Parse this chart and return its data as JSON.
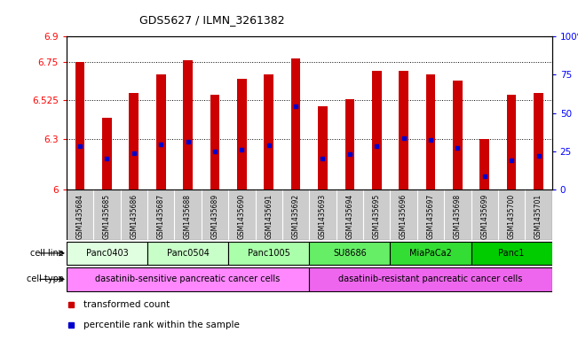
{
  "title": "GDS5627 / ILMN_3261382",
  "samples": [
    "GSM1435684",
    "GSM1435685",
    "GSM1435686",
    "GSM1435687",
    "GSM1435688",
    "GSM1435689",
    "GSM1435690",
    "GSM1435691",
    "GSM1435692",
    "GSM1435693",
    "GSM1435694",
    "GSM1435695",
    "GSM1435696",
    "GSM1435697",
    "GSM1435698",
    "GSM1435699",
    "GSM1435700",
    "GSM1435701"
  ],
  "bar_tops": [
    6.75,
    6.42,
    6.57,
    6.68,
    6.76,
    6.56,
    6.65,
    6.68,
    6.77,
    6.49,
    6.53,
    6.7,
    6.7,
    6.68,
    6.64,
    6.3,
    6.56,
    6.57
  ],
  "blue_positions": [
    6.255,
    6.185,
    6.215,
    6.265,
    6.28,
    6.225,
    6.235,
    6.26,
    6.49,
    6.185,
    6.21,
    6.255,
    6.305,
    6.295,
    6.245,
    6.08,
    6.175,
    6.2
  ],
  "y_min": 6.0,
  "y_max": 6.9,
  "y_ticks": [
    6.0,
    6.3,
    6.525,
    6.75,
    6.9
  ],
  "y_tick_labels": [
    "6",
    "6.3",
    "6.525",
    "6.75",
    "6.9"
  ],
  "right_y_ticks": [
    0,
    25,
    50,
    75,
    100
  ],
  "right_y_tick_labels": [
    "0",
    "25",
    "50",
    "75",
    "100%"
  ],
  "bar_color": "#cc0000",
  "blue_color": "#0000cc",
  "bar_width": 0.35,
  "cell_lines": [
    {
      "label": "Panc0403",
      "start": 0,
      "end": 2,
      "color": "#e8ffe8"
    },
    {
      "label": "Panc0504",
      "start": 3,
      "end": 5,
      "color": "#ccffcc"
    },
    {
      "label": "Panc1005",
      "start": 6,
      "end": 8,
      "color": "#aaffaa"
    },
    {
      "label": "SU8686",
      "start": 9,
      "end": 11,
      "color": "#66ee66"
    },
    {
      "label": "MiaPaCa2",
      "start": 12,
      "end": 14,
      "color": "#44dd44"
    },
    {
      "label": "Panc1",
      "start": 15,
      "end": 17,
      "color": "#22cc22"
    }
  ],
  "cell_type_groups": [
    {
      "label": "dasatinib-sensitive pancreatic cancer cells",
      "start": 0,
      "end": 8,
      "color": "#ff88ff"
    },
    {
      "label": "dasatinib-resistant pancreatic cancer cells",
      "start": 9,
      "end": 17,
      "color": "#ee66ee"
    }
  ],
  "sample_label_bg": "#cccccc",
  "grid_lines": [
    6.75,
    6.525,
    6.3
  ],
  "legend_items": [
    {
      "label": "transformed count",
      "color": "#cc0000"
    },
    {
      "label": "percentile rank within the sample",
      "color": "#0000cc"
    }
  ]
}
